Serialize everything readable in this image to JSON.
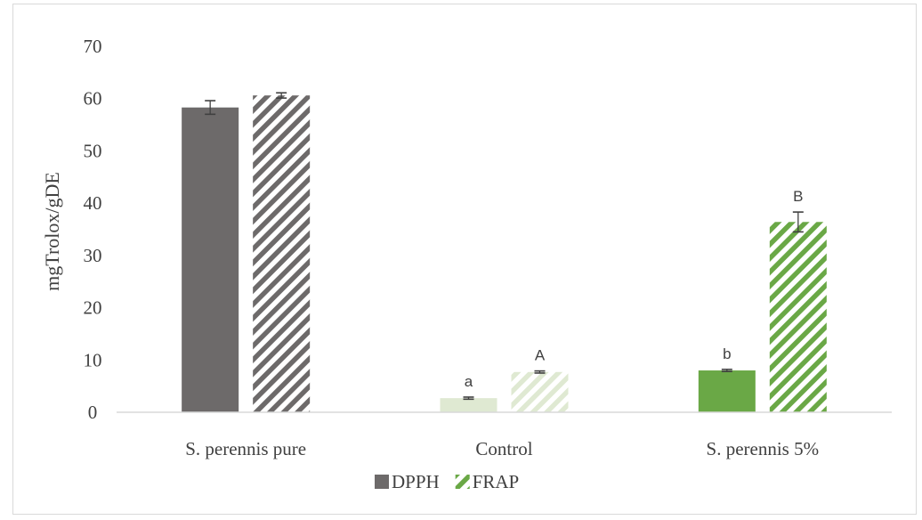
{
  "chart_data": {
    "type": "bar",
    "title": "",
    "ylabel": "mgTrolox/gDE",
    "xlabel": "",
    "ylim": [
      0,
      70
    ],
    "yticks": [
      0,
      10,
      20,
      30,
      40,
      50,
      60,
      70
    ],
    "grid": false,
    "legend_position": "bottom",
    "categories": [
      "S. perennis pure",
      "Control",
      "S. perennis  5%"
    ],
    "series": [
      {
        "name": "DPPH",
        "pattern": "solid",
        "values": [
          58.3,
          2.7,
          8.0
        ],
        "errors": [
          1.3,
          0.2,
          0.2
        ],
        "colors": [
          "#6d6a6a",
          "#dfe9d2",
          "#6aa846"
        ],
        "labels": [
          "",
          "a",
          "b"
        ]
      },
      {
        "name": "FRAP",
        "pattern": "diagonal-stripes",
        "values": [
          60.6,
          7.7,
          36.4
        ],
        "errors": [
          0.5,
          0.2,
          1.9
        ],
        "colors": [
          "#6d6a6a",
          "#dfe9d2",
          "#6aa846"
        ],
        "labels": [
          "",
          "A",
          "B"
        ]
      }
    ],
    "legend_colors": {
      "DPPH": "#6d6a6a",
      "FRAP": "#6aa846"
    },
    "axis_color": "#d9d9d9",
    "text_color": "#404040"
  }
}
